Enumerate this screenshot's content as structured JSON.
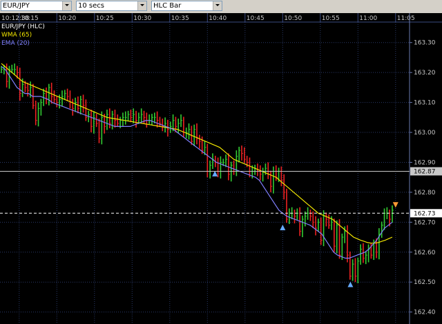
{
  "toolbar": {
    "symbol": "EUR/JPY",
    "interval": "10 secs",
    "bar_type": "HLC Bar"
  },
  "legend": {
    "title": "EUR/JPY (HLC)",
    "wma": "WMA (65)",
    "ema": "EMA (20)"
  },
  "colors": {
    "background": "#000000",
    "grid": "#2a3a6a",
    "up_bar": "#33cc33",
    "down_bar": "#ee2222",
    "wma_line": "#f2e600",
    "ema_line": "#8080ff",
    "arrow_up": "#66aaff",
    "arrow_down": "#ff9933"
  },
  "chart_data": {
    "type": "line",
    "title": "EUR/JPY (HLC)",
    "time_start_label": "10:12:38",
    "x_ticks": [
      "10:15",
      "10:20",
      "10:25",
      "10:30",
      "10:35",
      "10:40",
      "10:45",
      "10:50",
      "10:55",
      "11:00",
      "11:05"
    ],
    "y_ticks": [
      "163.30",
      "163.20",
      "163.10",
      "163.00",
      "162.90",
      "162.80",
      "162.70",
      "162.60",
      "162.50",
      "162.40"
    ],
    "ylim": [
      162.36,
      163.38
    ],
    "crosshair_price": "162.87",
    "last_price": "162.73",
    "grid": true,
    "bar_interval_seconds": 10,
    "bars_close": [
      163.21,
      163.21,
      163.17,
      163.21,
      163.21,
      163.21,
      163.2,
      163.13,
      163.16,
      163.15,
      163.14,
      163.15,
      163.09,
      163.04,
      163.08,
      163.1,
      163.13,
      163.11,
      163.15,
      163.12,
      163.11,
      163.1,
      163.11,
      163.12,
      163.13,
      163.12,
      163.1,
      163.08,
      163.1,
      163.08,
      163.11,
      163.09,
      163.05,
      163.06,
      163.02,
      163.05,
      163.03,
      162.98,
      163.05,
      163.02,
      163.06,
      163.03,
      163.06,
      163.04,
      163.03,
      163.04,
      163.05,
      163.05,
      163.06,
      163.05,
      163.06,
      163.04,
      163.05,
      163.06,
      163.05,
      163.04,
      163.04,
      163.05,
      163.05,
      163.04,
      163.03,
      163.02,
      163.03,
      163.01,
      163.02,
      163.04,
      163.02,
      163.03,
      163.04,
      163.0,
      163.0,
      163.01,
      162.97,
      163.01,
      162.98,
      162.97,
      162.94,
      162.95,
      162.87,
      162.89,
      162.91,
      162.9,
      162.87,
      162.9,
      162.9,
      162.91,
      162.86,
      162.89,
      162.87,
      162.92,
      162.94,
      162.93,
      162.91,
      162.9,
      162.87,
      162.87,
      162.88,
      162.87,
      162.86,
      162.87,
      162.88,
      162.86,
      162.82,
      162.87,
      162.85,
      162.87,
      162.84,
      162.8,
      162.71,
      162.73,
      162.73,
      162.72,
      162.73,
      162.67,
      162.71,
      162.72,
      162.73,
      162.72,
      162.7,
      162.68,
      162.7,
      162.64,
      162.72,
      162.71,
      162.69,
      162.7,
      162.62,
      162.69,
      162.59,
      162.65,
      162.67,
      162.59,
      162.52,
      162.56,
      162.52,
      162.57,
      162.61,
      162.58,
      162.59,
      162.61,
      162.59,
      162.63,
      162.6,
      162.66,
      162.69,
      162.73,
      162.73,
      162.71,
      162.74
    ],
    "series": [
      {
        "name": "WMA (65)",
        "values": [
          163.23,
          163.22,
          163.21,
          163.2,
          163.19,
          163.18,
          163.17,
          163.165,
          163.16,
          163.155,
          163.15,
          163.145,
          163.14,
          163.135,
          163.13,
          163.125,
          163.12,
          163.115,
          163.11,
          163.105,
          163.1,
          163.095,
          163.09,
          163.085,
          163.08,
          163.075,
          163.07,
          163.065,
          163.06,
          163.055,
          163.05,
          163.048,
          163.046,
          163.044,
          163.042,
          163.04,
          163.038,
          163.036,
          163.034,
          163.032,
          163.03,
          163.028,
          163.026,
          163.024,
          163.022,
          163.02,
          163.018,
          163.016,
          163.014,
          163.012,
          163.01,
          163.005,
          163.0,
          162.995,
          162.99,
          162.985,
          162.98,
          162.975,
          162.97,
          162.965,
          162.96,
          162.955,
          162.95,
          162.94,
          162.93,
          162.92,
          162.91,
          162.905,
          162.9,
          162.895,
          162.89,
          162.885,
          162.88,
          162.875,
          162.87,
          162.865,
          162.86,
          162.855,
          162.85,
          162.84,
          162.83,
          162.82,
          162.81,
          162.8,
          162.79,
          162.78,
          162.77,
          162.76,
          162.75,
          162.74,
          162.73,
          162.725,
          162.72,
          162.715,
          162.71,
          162.7,
          162.69,
          162.68,
          162.67,
          162.66,
          162.65,
          162.645,
          162.64,
          162.636,
          162.632,
          162.63,
          162.63,
          162.632,
          162.636,
          162.64,
          162.645,
          162.65
        ]
      },
      {
        "name": "EMA (20)",
        "values": [
          163.22,
          163.21,
          163.19,
          163.17,
          163.15,
          163.14,
          163.13,
          163.13,
          163.12,
          163.12,
          163.12,
          163.115,
          163.11,
          163.1,
          163.095,
          163.09,
          163.085,
          163.08,
          163.075,
          163.07,
          163.065,
          163.06,
          163.055,
          163.05,
          163.045,
          163.04,
          163.035,
          163.03,
          163.025,
          163.02,
          163.02,
          163.02,
          163.02,
          163.02,
          163.025,
          163.03,
          163.035,
          163.04,
          163.04,
          163.035,
          163.03,
          163.025,
          163.02,
          163.015,
          163.01,
          163.0,
          162.99,
          162.98,
          162.97,
          162.96,
          162.95,
          162.94,
          162.93,
          162.92,
          162.91,
          162.9,
          162.895,
          162.89,
          162.885,
          162.88,
          162.875,
          162.87,
          162.865,
          162.86,
          162.855,
          162.85,
          162.84,
          162.82,
          162.8,
          162.78,
          162.76,
          162.74,
          162.73,
          162.72,
          162.715,
          162.71,
          162.705,
          162.7,
          162.695,
          162.69,
          162.68,
          162.67,
          162.66,
          162.64,
          162.62,
          162.6,
          162.59,
          162.585,
          162.58,
          162.58,
          162.585,
          162.59,
          162.595,
          162.6,
          162.61,
          162.625,
          162.64,
          162.66,
          162.68,
          162.69,
          162.7
        ]
      }
    ],
    "markers": [
      {
        "type": "arrow-up",
        "time": "10:41",
        "price": 162.86
      },
      {
        "type": "arrow-up",
        "time": "10:50",
        "price": 162.68
      },
      {
        "type": "arrow-up",
        "time": "10:59",
        "price": 162.49
      },
      {
        "type": "arrow-down",
        "time": "11:05",
        "price": 162.76
      }
    ]
  }
}
